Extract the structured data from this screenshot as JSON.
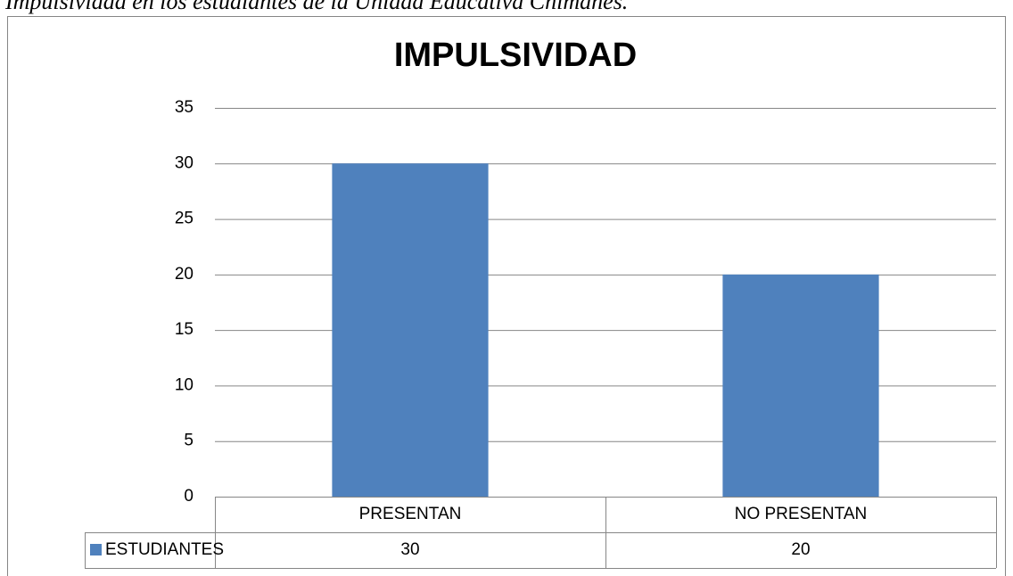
{
  "caption": "Impulsividad en los estudiantes de la Unidad Educativa Chimanes.",
  "chart_data": {
    "type": "bar",
    "title": "IMPULSIVIDAD",
    "categories": [
      "PRESENTAN",
      "NO PRESENTAN"
    ],
    "series": [
      {
        "name": "ESTUDIANTES",
        "color": "#4f81bd",
        "values": [
          30,
          20
        ]
      }
    ],
    "ylim": [
      0,
      35
    ],
    "yticks": [
      0,
      5,
      10,
      15,
      20,
      25,
      30,
      35
    ],
    "grid": true,
    "data_table": true
  }
}
